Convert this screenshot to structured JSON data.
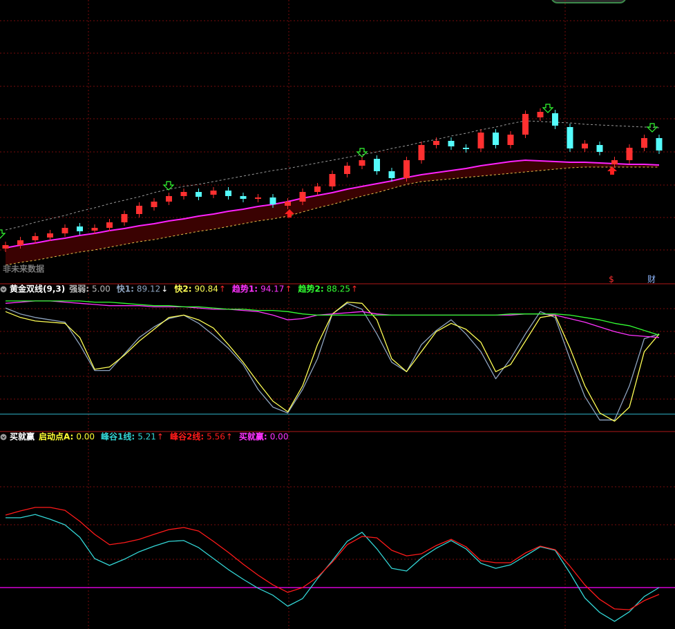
{
  "chart_data": [
    {
      "type": "candlestick",
      "watermark": "非未来数据",
      "markers": [
        "$",
        "财"
      ],
      "up_color": "#ff3030",
      "down_color": "#54fcfc",
      "band_color": "#3a0202",
      "ylim": [
        0,
        410
      ],
      "open": [
        50,
        55,
        62,
        66,
        72,
        82,
        76,
        80,
        88,
        100,
        110,
        118,
        126,
        132,
        128,
        134,
        126,
        122,
        124,
        112,
        118,
        132,
        140,
        158,
        170,
        180,
        162,
        152,
        178,
        200,
        206,
        196,
        195,
        218,
        200,
        215,
        240,
        246,
        226,
        195,
        200,
        172,
        178,
        196,
        210
      ],
      "high": [
        60,
        67,
        73,
        77,
        85,
        87,
        85,
        93,
        105,
        117,
        123,
        131,
        137,
        137,
        139,
        139,
        131,
        129,
        129,
        123,
        137,
        145,
        163,
        175,
        183,
        185,
        167,
        183,
        205,
        211,
        211,
        201,
        223,
        223,
        220,
        250,
        253,
        251,
        231,
        207,
        205,
        183,
        201,
        215,
        215
      ],
      "low": [
        45,
        50,
        57,
        61,
        67,
        70,
        71,
        75,
        83,
        95,
        105,
        113,
        121,
        120,
        123,
        121,
        117,
        117,
        109,
        107,
        113,
        127,
        135,
        153,
        165,
        157,
        147,
        147,
        173,
        195,
        193,
        189,
        190,
        195,
        195,
        210,
        235,
        223,
        190,
        190,
        185,
        167,
        173,
        191,
        187
      ],
      "close": [
        55,
        62,
        68,
        72,
        80,
        75,
        80,
        88,
        100,
        112,
        118,
        126,
        132,
        125,
        134,
        126,
        122,
        124,
        114,
        118,
        132,
        140,
        158,
        170,
        178,
        162,
        152,
        178,
        200,
        206,
        198,
        194,
        218,
        200,
        215,
        245,
        248,
        228,
        195,
        202,
        190,
        178,
        196,
        210,
        192
      ],
      "series": [
        {
          "color": "#ff22ff",
          "width": 2,
          "dash": false,
          "values": [
            51,
            55,
            58,
            62,
            65,
            69,
            72,
            76,
            79,
            83,
            86,
            90,
            93,
            97,
            100,
            104,
            107,
            111,
            114,
            118,
            123,
            127,
            131,
            136,
            140,
            144,
            148,
            153,
            157,
            160,
            163,
            166,
            170,
            173,
            176,
            178,
            177,
            176,
            175,
            175,
            174,
            173,
            172,
            172,
            171
          ]
        },
        {
          "color": "#e8c04a",
          "width": 1,
          "dash": true,
          "values": [
            26,
            30,
            33,
            37,
            41,
            45,
            48,
            52,
            56,
            60,
            63,
            67,
            71,
            75,
            78,
            82,
            86,
            90,
            93,
            97,
            103,
            109,
            114,
            120,
            126,
            131,
            137,
            143,
            147,
            149,
            151,
            153,
            155,
            157,
            159,
            161,
            163,
            165,
            167,
            168,
            168,
            168,
            168,
            168,
            168
          ]
        },
        {
          "color": "#9a9a9a",
          "width": 1,
          "dash": true,
          "values": [
            77,
            82,
            88,
            93,
            98,
            104,
            109,
            115,
            120,
            125,
            131,
            136,
            140,
            143,
            147,
            151,
            155,
            159,
            163,
            166,
            170,
            174,
            178,
            182,
            186,
            190,
            195,
            199,
            204,
            208,
            213,
            217,
            222,
            226,
            231,
            235,
            234,
            233,
            232,
            230,
            229,
            228,
            227,
            226,
            225
          ]
        }
      ]
    },
    {
      "type": "line",
      "title": "黄金双线(9,3)",
      "ylim": [
        -13,
        110
      ],
      "reference_line": {
        "value": 0,
        "color": "#2aa6b8"
      },
      "series": [
        {
          "name": "强弱:",
          "value_label": "5.00",
          "color": "#b8b8b8"
        },
        {
          "name": "快1:",
          "value_label": "89.12",
          "arrow": "↓",
          "arrow_color": "#ffffff",
          "color": "#8ea4c0",
          "values": [
            90,
            85,
            82,
            80,
            78,
            59,
            37,
            37,
            51,
            65,
            74,
            81,
            84,
            77,
            67,
            56,
            42,
            21,
            6,
            1,
            21,
            47,
            85,
            94,
            89,
            68,
            44,
            36,
            59,
            71,
            80,
            68,
            53,
            30,
            47,
            68,
            87,
            82,
            47,
            15,
            -5,
            -5,
            24,
            64,
            68
          ]
        },
        {
          "name": "快2:",
          "value_label": "90.84",
          "arrow": "↑",
          "arrow_color": "#ff2a2a",
          "color": "#ffff55",
          "values": [
            87,
            82,
            79,
            78,
            77,
            65,
            38,
            40,
            50,
            62,
            72,
            82,
            84,
            80,
            73,
            59,
            44,
            27,
            11,
            2,
            24,
            59,
            85,
            95,
            94,
            80,
            47,
            36,
            53,
            70,
            77,
            72,
            61,
            36,
            42,
            62,
            82,
            84,
            56,
            24,
            1,
            -6,
            6,
            53,
            68
          ]
        },
        {
          "name": "趋势1:",
          "value_label": "94.17",
          "arrow": "↑",
          "arrow_color": "#ff2a2a",
          "color": "#ff33ff",
          "values": [
            94,
            95,
            96,
            96,
            95,
            94,
            93,
            92,
            92,
            92,
            91,
            91,
            91,
            90,
            89,
            89,
            88,
            87,
            84,
            80,
            81,
            84,
            85,
            86,
            87,
            85,
            84,
            84,
            84,
            84,
            84,
            84,
            84,
            84,
            84,
            85,
            85,
            84,
            81,
            78,
            74,
            70,
            67,
            66,
            65
          ]
        },
        {
          "name": "趋势2:",
          "value_label": "88.25",
          "arrow": "↑",
          "arrow_color": "#ff2a2a",
          "color": "#33ff33",
          "values": [
            96,
            96,
            96,
            96,
            96,
            96,
            95,
            95,
            94,
            93,
            92,
            92,
            91,
            91,
            90,
            89,
            89,
            88,
            88,
            87,
            85,
            84,
            84,
            84,
            84,
            84,
            84,
            84,
            84,
            84,
            84,
            84,
            84,
            84,
            85,
            85,
            85,
            85,
            84,
            82,
            80,
            77,
            75,
            71,
            67
          ]
        }
      ]
    },
    {
      "type": "line",
      "title": "买就赢",
      "ylim": [
        3,
        12
      ],
      "reference_line": {
        "value": 5,
        "color": "#ff00ff"
      },
      "series": [
        {
          "name": "启动点A:",
          "value_label": "0.00",
          "color": "#ffff33"
        },
        {
          "name": "峰谷1线:",
          "value_label": "5.21",
          "arrow": "↑",
          "arrow_color": "#ff2a2a",
          "color": "#33d6d6",
          "values": [
            8.37,
            8.37,
            8.53,
            8.3,
            8.03,
            7.43,
            6.4,
            6.07,
            6.37,
            6.73,
            7,
            7.23,
            7.27,
            6.93,
            6.4,
            5.87,
            5.4,
            4.97,
            4.63,
            4.1,
            4.47,
            5.43,
            6.3,
            7.23,
            7.67,
            6.87,
            5.93,
            5.8,
            6.43,
            6.9,
            7.27,
            6.87,
            6.17,
            5.93,
            6.1,
            6.53,
            6.97,
            6.8,
            5.7,
            4.5,
            3.8,
            3.37,
            3.83,
            4.57,
            5
          ]
        },
        {
          "name": "峰谷2线:",
          "value_label": "5.56",
          "arrow": "↑",
          "arrow_color": "#ff2a2a",
          "color": "#ff1a1a",
          "values": [
            8.5,
            8.7,
            8.87,
            8.87,
            8.73,
            8.2,
            7.57,
            7.07,
            7.17,
            7.33,
            7.57,
            7.8,
            7.9,
            7.73,
            7.23,
            6.7,
            6.13,
            5.6,
            5.13,
            4.77,
            5,
            5.5,
            6.23,
            7.07,
            7.47,
            7.4,
            6.8,
            6.53,
            6.63,
            7.03,
            7.33,
            6.97,
            6.3,
            6.2,
            6.2,
            6.67,
            7,
            6.83,
            6.03,
            5.13,
            4.43,
            3.97,
            3.93,
            4.37,
            4.67
          ]
        },
        {
          "name": "买就赢:",
          "value_label": "0.00",
          "color": "#ff33ff"
        }
      ]
    }
  ]
}
